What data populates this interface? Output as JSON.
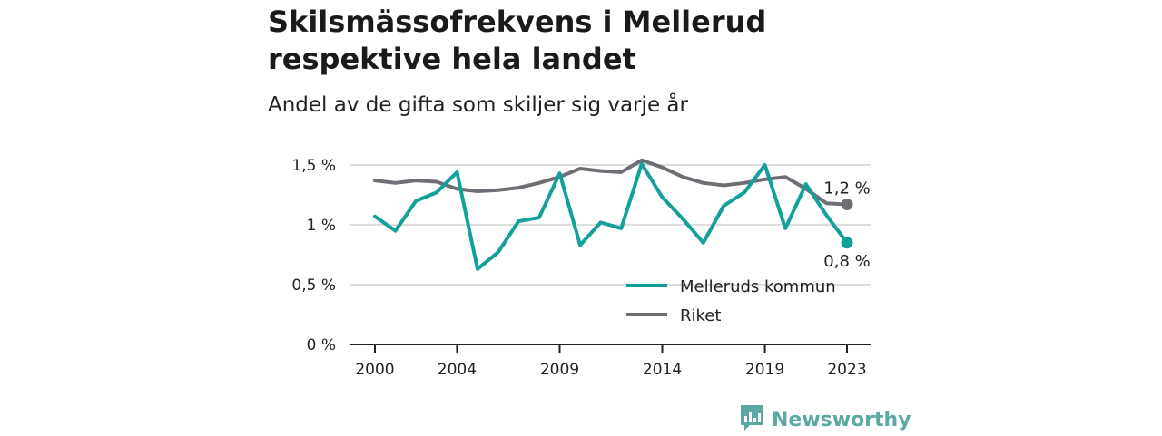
{
  "title": "Skilsmässofrekvens i Mellerud respektive hela landet",
  "subtitle": "Andel av de gifta som skiljer sig varje år",
  "logo": {
    "icon": "bar-chart-speech-bubble-icon",
    "text": "Newsworthy"
  },
  "colors": {
    "mellerud": "#12a19a",
    "riket": "#6f6e74",
    "grid": "#dddddd",
    "axis": "#222222",
    "logo": "#5aa9a2"
  },
  "chart_data": {
    "type": "line",
    "x": [
      2000,
      2001,
      2002,
      2003,
      2004,
      2005,
      2006,
      2007,
      2008,
      2009,
      2010,
      2011,
      2012,
      2013,
      2014,
      2015,
      2016,
      2017,
      2018,
      2019,
      2020,
      2021,
      2022,
      2023
    ],
    "series": [
      {
        "name": "Melleruds kommun",
        "color": "#12a19a",
        "values": [
          1.07,
          0.95,
          1.2,
          1.27,
          1.44,
          0.63,
          0.77,
          1.03,
          1.06,
          1.43,
          0.83,
          1.02,
          0.97,
          1.51,
          1.23,
          1.05,
          0.85,
          1.16,
          1.27,
          1.5,
          0.97,
          1.34,
          1.08,
          0.85
        ]
      },
      {
        "name": "Riket",
        "color": "#6f6e74",
        "values": [
          1.37,
          1.35,
          1.37,
          1.36,
          1.3,
          1.28,
          1.29,
          1.31,
          1.35,
          1.4,
          1.47,
          1.45,
          1.44,
          1.54,
          1.48,
          1.4,
          1.35,
          1.33,
          1.35,
          1.38,
          1.4,
          1.3,
          1.18,
          1.17
        ]
      }
    ],
    "x_ticks": [
      2000,
      2004,
      2009,
      2014,
      2019,
      2023
    ],
    "x_tick_labels": [
      "2000",
      "2004",
      "2009",
      "2014",
      "2019",
      "2023"
    ],
    "y_ticks": [
      0,
      0.5,
      1,
      1.5
    ],
    "y_tick_labels": [
      "0 %",
      "0,5 %",
      "1 %",
      "1,5 %"
    ],
    "ylim": [
      0,
      1.5
    ],
    "xlim": [
      2000,
      2023
    ],
    "end_labels": {
      "riket": "1,2 %",
      "mellerud": "0,8 %"
    },
    "legend": {
      "position": "lower-right",
      "entries": [
        "Melleruds kommun",
        "Riket"
      ]
    },
    "grid": true
  }
}
